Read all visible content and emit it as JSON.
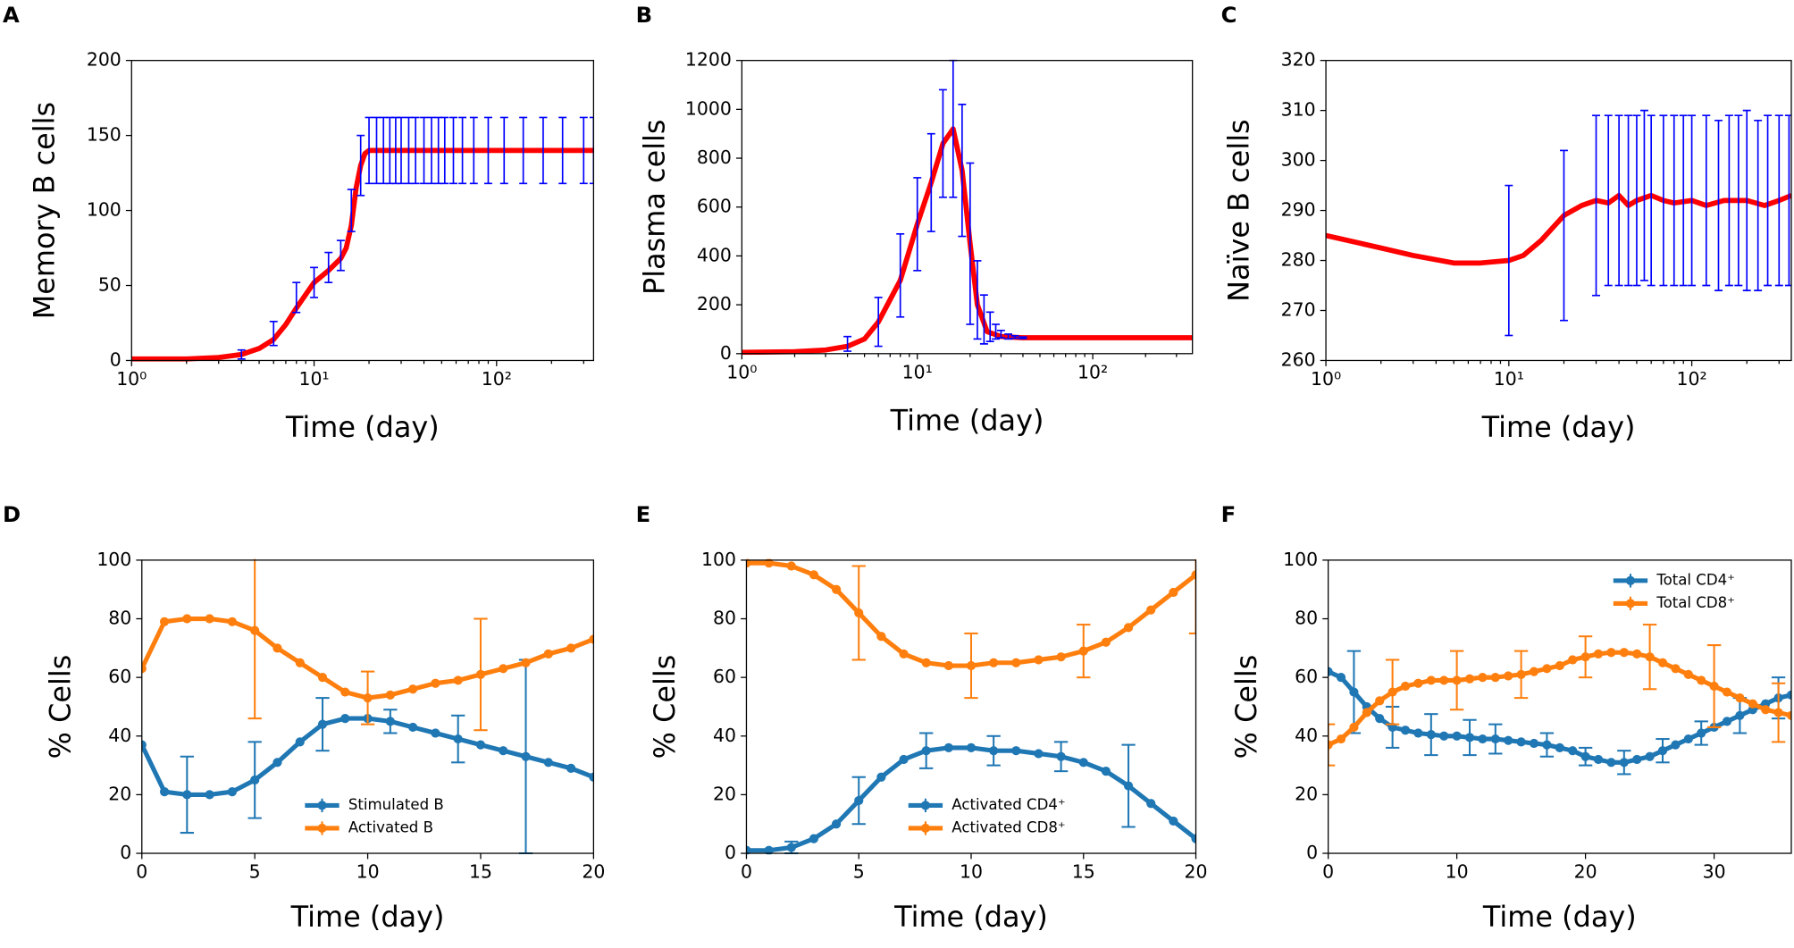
{
  "chart_data": [
    {
      "type": "line",
      "label": "A",
      "xlabel": "Time (day)",
      "ylabel": "Memory B cells",
      "log_x": true,
      "xlim": [
        1,
        340
      ],
      "ylim": [
        0,
        200
      ],
      "xticks": [
        {
          "value": 1,
          "label": "10⁰"
        },
        {
          "value": 10,
          "label": "10¹"
        },
        {
          "value": 100,
          "label": "10²"
        }
      ],
      "yticks": [
        0,
        50,
        100,
        150,
        200
      ],
      "series": [
        {
          "color": "#ff0000",
          "x": [
            1,
            2,
            3,
            4,
            5,
            6,
            7,
            8,
            9,
            10,
            12,
            14,
            15,
            16,
            17,
            18,
            19,
            20,
            22,
            25,
            30,
            50,
            100,
            200,
            340
          ],
          "values": [
            1,
            1,
            2,
            4,
            8,
            14,
            24,
            35,
            44,
            52,
            60,
            68,
            75,
            90,
            115,
            130,
            138,
            140,
            140,
            140,
            140,
            140,
            140,
            140,
            140
          ]
        },
        {
          "color": "#0000ff",
          "line": false,
          "x": [
            4,
            6,
            8,
            10,
            12,
            14,
            16,
            18,
            20,
            22,
            24,
            26,
            28,
            30,
            33,
            36,
            40,
            44,
            48,
            52,
            58,
            65,
            75,
            90,
            110,
            140,
            180,
            230,
            300,
            340
          ],
          "values": [
            4,
            18,
            42,
            52,
            62,
            70,
            100,
            130,
            140,
            140,
            140,
            140,
            140,
            140,
            140,
            140,
            140,
            140,
            140,
            140,
            140,
            140,
            140,
            140,
            140,
            140,
            140,
            140,
            140,
            140
          ],
          "errors": [
            3,
            8,
            10,
            10,
            10,
            10,
            14,
            20,
            22,
            22,
            22,
            22,
            22,
            22,
            22,
            22,
            22,
            22,
            22,
            22,
            22,
            22,
            22,
            22,
            22,
            22,
            22,
            22,
            22,
            22
          ]
        }
      ]
    },
    {
      "type": "line",
      "label": "B",
      "xlabel": "Time (day)",
      "ylabel": "Plasma cells",
      "log_x": true,
      "xlim": [
        1,
        370
      ],
      "ylim": [
        0,
        1200
      ],
      "xticks": [
        {
          "value": 1,
          "label": "10⁰"
        },
        {
          "value": 10,
          "label": "10¹"
        },
        {
          "value": 100,
          "label": "10²"
        }
      ],
      "yticks": [
        0,
        200,
        400,
        600,
        800,
        1000,
        1200
      ],
      "series": [
        {
          "color": "#ff0000",
          "x": [
            1,
            2,
            3,
            4,
            5,
            6,
            8,
            10,
            12,
            14,
            16,
            18,
            20,
            22,
            25,
            30,
            40,
            60,
            100,
            370
          ],
          "values": [
            5,
            8,
            15,
            30,
            60,
            130,
            300,
            530,
            700,
            860,
            920,
            750,
            450,
            200,
            90,
            70,
            65,
            65,
            65,
            65
          ]
        },
        {
          "color": "#0000ff",
          "line": false,
          "x": [
            4,
            6,
            8,
            10,
            12,
            14,
            16,
            18,
            20,
            22,
            24,
            26,
            28,
            30,
            33,
            36,
            40
          ],
          "values": [
            40,
            130,
            320,
            530,
            700,
            860,
            920,
            750,
            450,
            220,
            140,
            110,
            90,
            80,
            70,
            68,
            65
          ],
          "errors": [
            30,
            100,
            170,
            190,
            200,
            220,
            280,
            270,
            330,
            160,
            100,
            60,
            30,
            15,
            10,
            5,
            3
          ]
        }
      ]
    },
    {
      "type": "line",
      "label": "C",
      "xlabel": "Time (day)",
      "ylabel": "Naïve B cells",
      "log_x": true,
      "xlim": [
        1,
        350
      ],
      "ylim": [
        260,
        320
      ],
      "xticks": [
        {
          "value": 1,
          "label": "10⁰"
        },
        {
          "value": 10,
          "label": "10¹"
        },
        {
          "value": 100,
          "label": "10²"
        }
      ],
      "yticks": [
        260,
        270,
        280,
        290,
        300,
        310,
        320
      ],
      "series": [
        {
          "color": "#ff0000",
          "x": [
            1,
            2,
            3,
            5,
            7,
            10,
            12,
            15,
            20,
            25,
            30,
            35,
            40,
            45,
            50,
            60,
            70,
            80,
            100,
            120,
            150,
            200,
            250,
            300,
            350
          ],
          "values": [
            285,
            282.5,
            281,
            279.5,
            279.5,
            280,
            281,
            284,
            289,
            291,
            292,
            291.5,
            293,
            291,
            292,
            293,
            292,
            291.5,
            292,
            291,
            292,
            292,
            291,
            292,
            293
          ]
        },
        {
          "color": "#0000ff",
          "line": false,
          "x": [
            10,
            20,
            30,
            35,
            40,
            45,
            50,
            55,
            60,
            70,
            80,
            90,
            100,
            120,
            140,
            160,
            180,
            200,
            230,
            260,
            300,
            340
          ],
          "values": [
            280,
            285,
            291,
            292,
            292,
            292,
            292,
            293,
            292,
            292,
            292,
            292,
            292,
            292,
            291,
            292,
            292,
            292,
            291,
            292,
            292,
            292
          ],
          "errors": [
            15,
            17,
            18,
            17,
            17,
            17,
            17,
            17,
            17,
            17,
            17,
            17,
            17,
            17,
            17,
            17,
            17,
            18,
            17,
            17,
            17,
            17
          ]
        }
      ]
    },
    {
      "type": "line",
      "label": "D",
      "xlabel": "Time (day)",
      "ylabel": "% Cells",
      "legend": "lower center",
      "xlim": [
        0,
        20
      ],
      "ylim": [
        0,
        100
      ],
      "xticks": [
        0,
        5,
        10,
        15,
        20
      ],
      "yticks": [
        0,
        20,
        40,
        60,
        80,
        100
      ],
      "series": [
        {
          "name": "Stimulated B",
          "color": "#1f77b4",
          "markers": true,
          "x": [
            0,
            1,
            2,
            3,
            4,
            5,
            6,
            7,
            8,
            9,
            10,
            11,
            12,
            13,
            14,
            15,
            16,
            17,
            18,
            19,
            20
          ],
          "values": [
            37,
            21,
            20,
            20,
            21,
            25,
            31,
            38,
            44,
            46,
            46,
            45,
            43,
            41,
            39,
            37,
            35,
            33,
            31,
            29,
            26
          ],
          "errors": [
            null,
            null,
            13,
            null,
            null,
            13,
            null,
            null,
            9,
            null,
            null,
            4,
            null,
            null,
            8,
            null,
            null,
            33,
            null,
            null,
            null
          ]
        },
        {
          "name": "Activated B",
          "color": "#ff7f0e",
          "markers": true,
          "x": [
            0,
            1,
            2,
            3,
            4,
            5,
            6,
            7,
            8,
            9,
            10,
            11,
            12,
            13,
            14,
            15,
            16,
            17,
            18,
            19,
            20
          ],
          "values": [
            63,
            79,
            80,
            80,
            79,
            76,
            70,
            65,
            60,
            55,
            53,
            54,
            56,
            58,
            59,
            61,
            63,
            65,
            68,
            70,
            73
          ],
          "errors": [
            null,
            null,
            null,
            null,
            null,
            30,
            null,
            null,
            null,
            null,
            9,
            null,
            null,
            null,
            null,
            19,
            null,
            null,
            null,
            null,
            null
          ]
        }
      ]
    },
    {
      "type": "line",
      "label": "E",
      "xlabel": "Time (day)",
      "ylabel": "% Cells",
      "legend": "lower center",
      "xlim": [
        0,
        20
      ],
      "ylim": [
        0,
        100
      ],
      "xticks": [
        0,
        5,
        10,
        15,
        20
      ],
      "yticks": [
        0,
        20,
        40,
        60,
        80,
        100
      ],
      "series": [
        {
          "name": "Activated CD4⁺",
          "color": "#1f77b4",
          "markers": true,
          "x": [
            0,
            1,
            2,
            3,
            4,
            5,
            6,
            7,
            8,
            9,
            10,
            11,
            12,
            13,
            14,
            15,
            16,
            17,
            18,
            19,
            20
          ],
          "values": [
            1,
            1,
            2,
            5,
            10,
            18,
            26,
            32,
            35,
            36,
            36,
            35,
            35,
            34,
            33,
            31,
            28,
            23,
            17,
            11,
            5
          ],
          "errors": [
            null,
            null,
            2,
            null,
            null,
            8,
            null,
            null,
            6,
            null,
            null,
            5,
            null,
            null,
            5,
            null,
            null,
            14,
            null,
            null,
            null
          ]
        },
        {
          "name": "Activated CD8⁺",
          "color": "#ff7f0e",
          "markers": true,
          "x": [
            0,
            1,
            2,
            3,
            4,
            5,
            6,
            7,
            8,
            9,
            10,
            11,
            12,
            13,
            14,
            15,
            16,
            17,
            18,
            19,
            20
          ],
          "values": [
            99,
            99,
            98,
            95,
            90,
            82,
            74,
            68,
            65,
            64,
            64,
            65,
            65,
            66,
            67,
            69,
            72,
            77,
            83,
            89,
            95
          ],
          "errors": [
            null,
            null,
            null,
            null,
            null,
            16,
            null,
            null,
            null,
            null,
            11,
            null,
            null,
            null,
            null,
            9,
            null,
            null,
            null,
            null,
            20
          ]
        }
      ]
    },
    {
      "type": "line",
      "label": "F",
      "xlabel": "Time (day)",
      "ylabel": "% Cells",
      "legend": "upper right",
      "xlim": [
        0,
        36
      ],
      "ylim": [
        0,
        100
      ],
      "xticks": [
        0,
        10,
        20,
        30
      ],
      "yticks": [
        0,
        20,
        40,
        60,
        80,
        100
      ],
      "series": [
        {
          "name": "Total CD4⁺",
          "color": "#1f77b4",
          "markers": true,
          "x": [
            0,
            1,
            2,
            3,
            4,
            5,
            6,
            7,
            8,
            9,
            10,
            11,
            12,
            13,
            14,
            15,
            16,
            17,
            18,
            19,
            20,
            21,
            22,
            23,
            24,
            25,
            26,
            27,
            28,
            29,
            30,
            31,
            32,
            33,
            34,
            35,
            36
          ],
          "values": [
            62,
            60,
            55,
            50,
            46,
            43,
            42,
            41,
            40.5,
            40,
            40,
            39.5,
            39,
            39,
            38.5,
            38,
            37.5,
            37,
            36,
            35,
            33,
            32,
            31,
            31,
            32,
            33,
            35,
            37,
            39,
            41,
            43,
            45,
            47,
            49,
            51,
            53,
            54
          ],
          "errors": [
            null,
            null,
            14,
            null,
            null,
            7,
            null,
            null,
            7,
            null,
            null,
            6,
            null,
            5,
            null,
            null,
            null,
            4,
            null,
            null,
            3,
            null,
            null,
            4,
            null,
            null,
            4,
            null,
            null,
            4,
            null,
            null,
            6,
            null,
            null,
            7,
            null
          ]
        },
        {
          "name": "Total CD8⁺",
          "color": "#ff7f0e",
          "markers": true,
          "x": [
            0,
            1,
            2,
            3,
            4,
            5,
            6,
            7,
            8,
            9,
            10,
            11,
            12,
            13,
            14,
            15,
            16,
            17,
            18,
            19,
            20,
            21,
            22,
            23,
            24,
            25,
            26,
            27,
            28,
            29,
            30,
            31,
            32,
            33,
            34,
            35,
            36
          ],
          "values": [
            37,
            39,
            43,
            48,
            52,
            55,
            57,
            58,
            59,
            59,
            59,
            59.5,
            60,
            60,
            60.5,
            61,
            62,
            63,
            64,
            66,
            67,
            68,
            68.5,
            68.5,
            68,
            67,
            65,
            63,
            61,
            59,
            57,
            55,
            53,
            51,
            49,
            48,
            47
          ],
          "errors": [
            7,
            null,
            null,
            null,
            null,
            11,
            null,
            null,
            null,
            null,
            10,
            null,
            null,
            null,
            null,
            8,
            null,
            null,
            null,
            null,
            7,
            null,
            null,
            null,
            null,
            11,
            null,
            null,
            null,
            null,
            14,
            null,
            null,
            null,
            null,
            10,
            null
          ]
        }
      ]
    }
  ]
}
